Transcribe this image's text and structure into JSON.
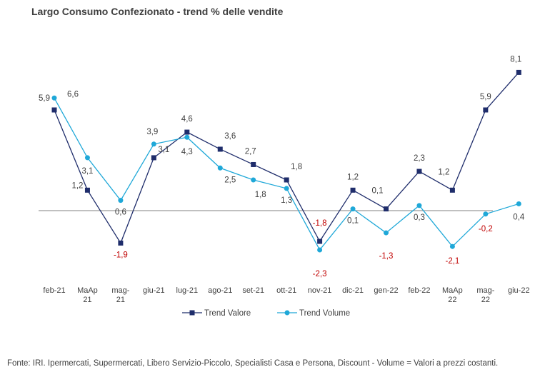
{
  "chart_data": {
    "type": "line",
    "title": "Largo Consumo Confezionato - trend % delle vendite",
    "categories": [
      [
        "feb-21"
      ],
      [
        "MaAp",
        "21"
      ],
      [
        "mag-",
        "21"
      ],
      [
        "giu-21"
      ],
      [
        "lug-21"
      ],
      [
        "ago-21"
      ],
      [
        "set-21"
      ],
      [
        "ott-21"
      ],
      [
        "nov-21"
      ],
      [
        "dic-21"
      ],
      [
        "gen-22"
      ],
      [
        "feb-22"
      ],
      [
        "MaAp",
        "22"
      ],
      [
        "mag-",
        "22"
      ],
      [
        "giu-22"
      ]
    ],
    "series": [
      {
        "name": "Trend Valore",
        "color": "#1f2d6b",
        "marker": "square",
        "values": [
          5.9,
          1.2,
          -1.9,
          3.1,
          4.6,
          3.6,
          2.7,
          1.8,
          -1.8,
          1.2,
          0.1,
          2.3,
          1.2,
          5.9,
          8.1
        ],
        "labels": [
          "5,9",
          "1,2",
          "-1,9",
          "3,1",
          "4,6",
          "3,6",
          "2,7",
          "1,8",
          "-1,8",
          "1,2",
          "0,1",
          "2,3",
          "1,2",
          "5,9",
          "8,1"
        ]
      },
      {
        "name": "Trend Volume",
        "color": "#1fa8d8",
        "marker": "circle",
        "values": [
          6.6,
          3.1,
          0.6,
          3.9,
          4.3,
          2.5,
          1.8,
          1.3,
          -2.3,
          0.1,
          -1.3,
          0.3,
          -2.1,
          -0.2,
          0.4
        ],
        "labels": [
          "6,6",
          "3,1",
          "0,6",
          "3,9",
          "4,3",
          "2,5",
          "1,8",
          "1,3",
          "-2,3",
          "0,1",
          "-1,3",
          "0,3",
          "-2,1",
          "-0,2",
          "0,4"
        ]
      }
    ],
    "ylim": [
      -4,
      10
    ],
    "negative_label_color": "#c00000",
    "label_color": "#404040",
    "axis_color": "#808080",
    "legend": "bottom"
  },
  "footer": {
    "source": "Fonte: IRI. Ipermercati, Supermercati, Libero Servizio-Piccolo,  Specialisti Casa e Persona, Discount -  Volume =  Valori a prezzi  costanti."
  }
}
